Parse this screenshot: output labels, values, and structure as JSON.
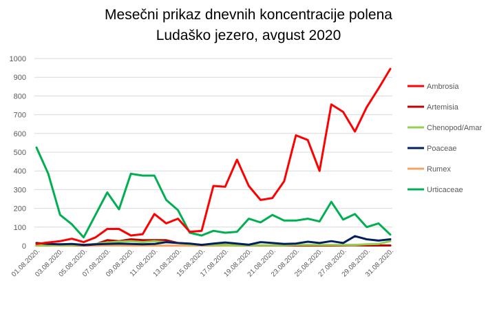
{
  "chart_data": {
    "type": "line",
    "title": "Mesečni prikaz dnevnih koncentracije polena",
    "subtitle": "Ludaško jezero, avgust 2020",
    "xlabel": "",
    "ylabel": "",
    "ylim": [
      0,
      1000
    ],
    "yticks": [
      0,
      100,
      200,
      300,
      400,
      500,
      600,
      700,
      800,
      900,
      1000
    ],
    "grid": true,
    "legend_position": "right",
    "categories": [
      "01.08.2020.",
      "02.08.2020.",
      "03.08.2020.",
      "04.08.2020.",
      "05.08.2020.",
      "06.08.2020.",
      "07.08.2020.",
      "08.08.2020.",
      "09.08.2020.",
      "10.08.2020.",
      "11.08.2020.",
      "12.08.2020.",
      "13.08.2020.",
      "14.08.2020.",
      "15.08.2020.",
      "16.08.2020.",
      "17.08.2020.",
      "18.08.2020.",
      "19.08.2020.",
      "20.08.2020.",
      "21.08.2020.",
      "22.08.2020.",
      "23.08.2020.",
      "24.08.2020.",
      "25.08.2020.",
      "26.08.2020.",
      "27.08.2020.",
      "28.08.2020.",
      "29.08.2020.",
      "30.08.2020.",
      "31.08.2020."
    ],
    "tick_labels": [
      "01.08.2020.",
      "03.08.2020.",
      "05.08.2020.",
      "07.08.2020.",
      "09.08.2020.",
      "11.08.2020.",
      "13.08.2020.",
      "15.08.2020.",
      "17.08.2020.",
      "19.08.2020.",
      "21.08.2020.",
      "23.08.2020.",
      "25.08.2020.",
      "27.08.2020.",
      "29.08.2020.",
      "31.08.2020."
    ],
    "series": [
      {
        "name": "Ambrosia",
        "color": "#ff0000",
        "values": [
          10,
          18,
          25,
          38,
          20,
          45,
          90,
          90,
          55,
          62,
          170,
          120,
          145,
          75,
          80,
          320,
          315,
          460,
          320,
          245,
          255,
          345,
          590,
          565,
          400,
          755,
          715,
          610,
          740,
          840,
          945
        ]
      },
      {
        "name": "Artemisia",
        "color": "#c00000",
        "values": [
          2,
          3,
          5,
          5,
          2,
          8,
          30,
          25,
          35,
          30,
          30,
          30,
          15,
          10,
          5,
          5,
          5,
          3,
          3,
          2,
          2,
          2,
          2,
          2,
          2,
          2,
          3,
          3,
          2,
          2,
          2
        ]
      },
      {
        "name": "Chenopod/Amar",
        "color": "#92d050",
        "values": [
          2,
          3,
          4,
          5,
          4,
          10,
          18,
          22,
          25,
          20,
          25,
          20,
          15,
          8,
          5,
          5,
          4,
          3,
          3,
          3,
          3,
          3,
          5,
          5,
          5,
          5,
          5,
          5,
          8,
          10,
          25
        ]
      },
      {
        "name": "Poaceae",
        "color": "#002060",
        "values": [
          15,
          10,
          8,
          10,
          5,
          8,
          10,
          12,
          10,
          8,
          10,
          20,
          15,
          12,
          5,
          12,
          18,
          12,
          6,
          20,
          15,
          10,
          12,
          22,
          15,
          25,
          15,
          52,
          35,
          28,
          35
        ]
      },
      {
        "name": "Rumex",
        "color": "#f4a460",
        "values": [
          1,
          1,
          1,
          1,
          1,
          1,
          2,
          2,
          1,
          1,
          1,
          1,
          1,
          1,
          1,
          1,
          1,
          1,
          1,
          1,
          1,
          1,
          1,
          1,
          1,
          1,
          1,
          5,
          3,
          2,
          2
        ]
      },
      {
        "name": "Urticaceae",
        "color": "#00b050",
        "values": [
          525,
          385,
          165,
          115,
          45,
          165,
          285,
          195,
          385,
          375,
          375,
          245,
          190,
          70,
          55,
          80,
          70,
          75,
          145,
          125,
          165,
          135,
          135,
          145,
          130,
          235,
          140,
          170,
          100,
          120,
          60
        ]
      }
    ]
  }
}
